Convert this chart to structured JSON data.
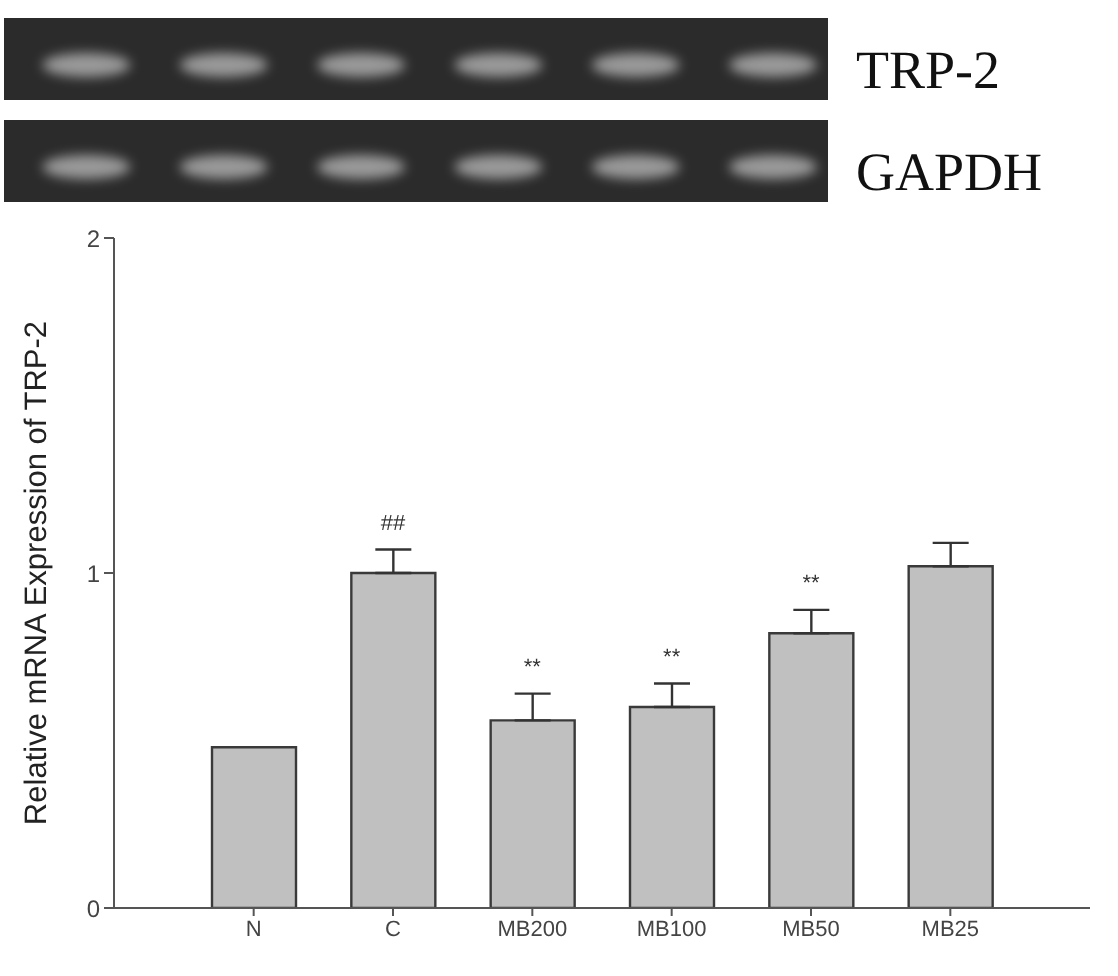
{
  "chart_data": {
    "type": "bar",
    "ylabel": "Relative mRNA Expression of TRP-2",
    "categories": [
      "N",
      "C",
      "MB200",
      "MB100",
      "MB50",
      "MB25"
    ],
    "values": [
      0.48,
      1.0,
      0.56,
      0.6,
      0.82,
      1.02
    ],
    "errors": [
      null,
      [
        1.0,
        1.07
      ],
      [
        0.56,
        0.64
      ],
      [
        0.6,
        0.67
      ],
      [
        0.82,
        0.89
      ],
      [
        1.02,
        1.09
      ]
    ],
    "color": "#c0c0c0",
    "ylim": [
      0,
      2
    ],
    "yticks": [
      0,
      1,
      2
    ],
    "annotations": [
      "TRP-2",
      "GAPDH",
      {
        "text": "##",
        "x": "C",
        "y": 1.0
      },
      {
        "text": "**",
        "x": "MB200",
        "y": 0.56
      },
      {
        "text": "**",
        "x": "MB100",
        "y": 0.6
      },
      {
        "text": "**",
        "x": "MB50",
        "y": 0.82
      }
    ]
  }
}
